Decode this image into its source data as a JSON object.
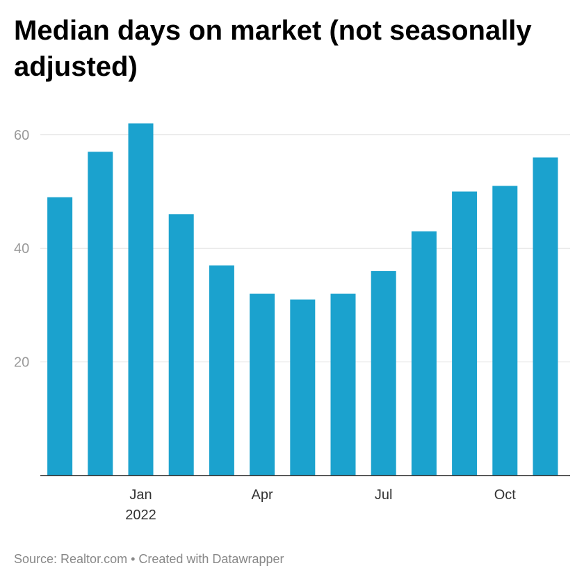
{
  "chart_data": {
    "type": "bar",
    "title": "Median days on market (not seasonally adjusted)",
    "xlabel": "",
    "ylabel": "",
    "ylim": [
      0,
      60
    ],
    "y_ticks": [
      20,
      40,
      60
    ],
    "x_ticks": [
      {
        "bar_index": 2,
        "label": "Jan",
        "sublabel": "2022"
      },
      {
        "bar_index": 5,
        "label": "Apr",
        "sublabel": ""
      },
      {
        "bar_index": 8,
        "label": "Jul",
        "sublabel": ""
      },
      {
        "bar_index": 11,
        "label": "Oct",
        "sublabel": ""
      }
    ],
    "values": [
      49,
      57,
      62,
      46,
      37,
      32,
      31,
      32,
      36,
      43,
      50,
      51,
      56
    ],
    "bar_color": "#1ba2ce",
    "grid": true,
    "legend": "none"
  },
  "footer": {
    "text": "Source: Realtor.com • Created with Datawrapper"
  }
}
